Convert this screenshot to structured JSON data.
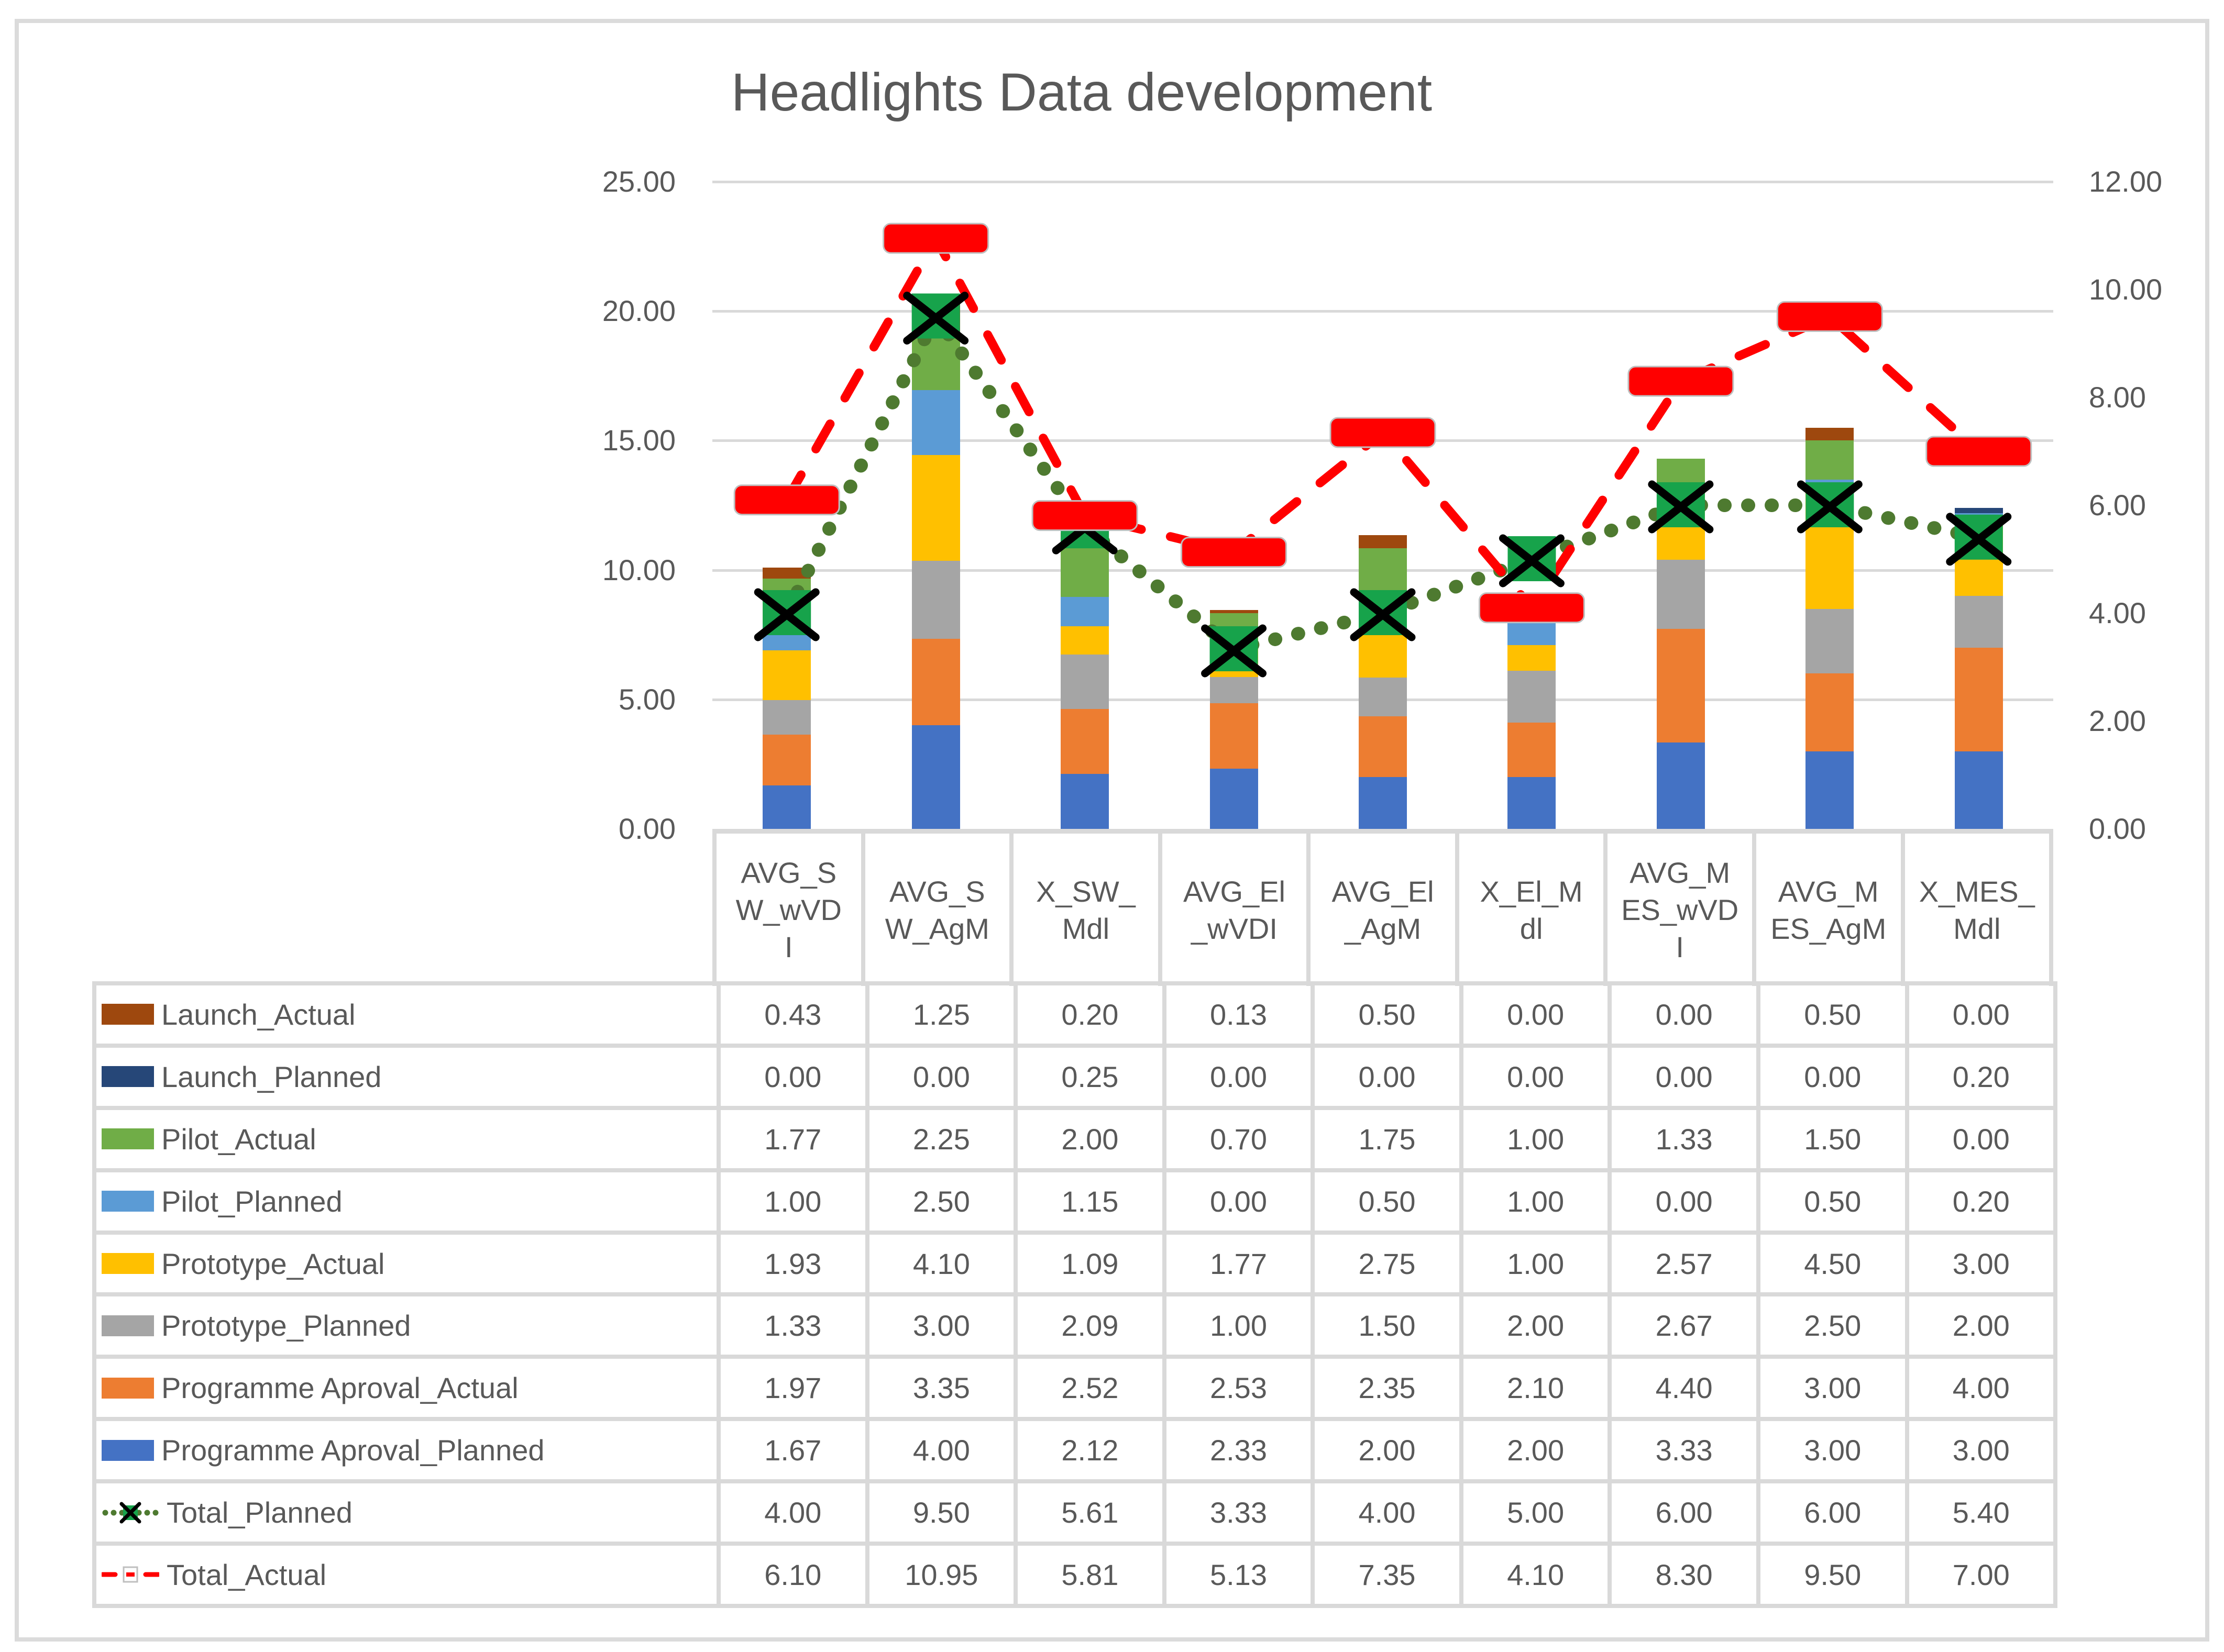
{
  "colors": {
    "text": "#595959",
    "grid_line": "#D9D9D9",
    "table_line": "#D9D9D9",
    "figure_border": "#DBDBDB",
    "marker_border": "#BFBFBF",
    "background": "#FFFFFF"
  },
  "chart_data": {
    "type": "combo: stacked bar (left axis) + 2 line series with markers (right axis)",
    "title": "Headlights Data development",
    "legend_position": "table-left",
    "grid": "horizontal major gridlines, left axis",
    "categories": [
      {
        "label": "AVG_SW_wVDI",
        "display_lines": [
          "AVG_S",
          "W_wVD",
          "I"
        ]
      },
      {
        "label": "AVG_SW_AgM",
        "display_lines": [
          "AVG_S",
          "W_AgM"
        ]
      },
      {
        "label": "X_SW_Mdl",
        "display_lines": [
          "X_SW_",
          "Mdl"
        ]
      },
      {
        "label": "AVG_El_wVDI",
        "display_lines": [
          "AVG_El",
          "_wVDI"
        ]
      },
      {
        "label": "AVG_El_AgM",
        "display_lines": [
          "AVG_El",
          "_AgM"
        ]
      },
      {
        "label": "X_El_Mdl",
        "display_lines": [
          "X_El_M",
          "dl"
        ]
      },
      {
        "label": "AVG_MES_wVDI",
        "display_lines": [
          "AVG_M",
          "ES_wVD",
          "I"
        ]
      },
      {
        "label": "AVG_MES_AgM",
        "display_lines": [
          "AVG_M",
          "ES_AgM"
        ]
      },
      {
        "label": "X_MES_Mdl",
        "display_lines": [
          "X_MES_",
          "Mdl"
        ]
      }
    ],
    "left_axis": {
      "min": 0,
      "max": 25,
      "step": 5,
      "ticks": [
        "25.00",
        "20.00",
        "15.00",
        "10.00",
        "5.00",
        "0.00"
      ]
    },
    "right_axis": {
      "min": 0,
      "max": 12,
      "step": 2,
      "ticks": [
        "12.00",
        "10.00",
        "8.00",
        "6.00",
        "4.00",
        "2.00",
        "0.00"
      ]
    },
    "series": {
      "launch_actual": {
        "label": "Launch_Actual",
        "key_type": "rect",
        "color": "#9E480E",
        "values": [
          0.43,
          1.25,
          0.2,
          0.13,
          0.5,
          0.0,
          0.0,
          0.5,
          0.0
        ]
      },
      "launch_planned": {
        "label": "Launch_Planned",
        "key_type": "rect",
        "color": "#264778",
        "values": [
          0.0,
          0.0,
          0.25,
          0.0,
          0.0,
          0.0,
          0.0,
          0.0,
          0.2
        ]
      },
      "pilot_actual": {
        "label": "Pilot_Actual",
        "key_type": "rect",
        "color": "#70AD47",
        "values": [
          1.77,
          2.25,
          2.0,
          0.7,
          1.75,
          1.0,
          1.33,
          1.5,
          0.0
        ]
      },
      "pilot_planned": {
        "label": "Pilot_Planned",
        "key_type": "rect",
        "color": "#5B9BD5",
        "values": [
          1.0,
          2.5,
          1.15,
          0.0,
          0.5,
          1.0,
          0.0,
          0.5,
          0.2
        ]
      },
      "prototype_actual": {
        "label": "Prototype_Actual",
        "key_type": "rect",
        "color": "#FFC000",
        "values": [
          1.93,
          4.1,
          1.09,
          1.77,
          2.75,
          1.0,
          2.57,
          4.5,
          3.0
        ]
      },
      "prototype_planned": {
        "label": "Prototype_Planned",
        "key_type": "rect",
        "color": "#A5A5A5",
        "values": [
          1.33,
          3.0,
          2.09,
          1.0,
          1.5,
          2.0,
          2.67,
          2.5,
          2.0
        ]
      },
      "programme_aproval_actual": {
        "label": "Programme Aproval_Actual",
        "key_type": "rect",
        "color": "#ED7D31",
        "values": [
          1.97,
          3.35,
          2.52,
          2.53,
          2.35,
          2.1,
          4.4,
          3.0,
          4.0
        ]
      },
      "programme_aproval_planned": {
        "label": "Programme Aproval_Planned",
        "key_type": "rect",
        "color": "#4472C4",
        "values": [
          1.67,
          4.0,
          2.12,
          2.33,
          2.0,
          2.0,
          3.33,
          3.0,
          3.0
        ]
      },
      "total_planned": {
        "label": "Total_Planned",
        "key_type": "dotted",
        "axis": "right",
        "line_style": "dotted",
        "line_color": "#4E7A30",
        "marker": "black X on green square",
        "marker_fill": "#17A34B",
        "marker_line": "#000000",
        "values": [
          4.0,
          9.5,
          5.61,
          3.33,
          4.0,
          5.0,
          6.0,
          6.0,
          5.4
        ]
      },
      "total_actual": {
        "label": "Total_Actual",
        "key_type": "dashed",
        "axis": "right",
        "line_style": "dashed",
        "line_color": "#FF0000",
        "marker": "red rounded dash with gray outline",
        "marker_fill": "#FF0000",
        "values": [
          6.1,
          10.95,
          5.81,
          5.13,
          7.35,
          4.1,
          8.3,
          9.5,
          7.0
        ]
      }
    },
    "stack_order": [
      "programme_aproval_planned",
      "programme_aproval_actual",
      "prototype_planned",
      "prototype_actual",
      "pilot_planned",
      "pilot_actual",
      "launch_planned",
      "launch_actual"
    ],
    "line_series_order": [
      "total_planned",
      "total_actual"
    ],
    "table_row_order": [
      "launch_actual",
      "launch_planned",
      "pilot_actual",
      "pilot_planned",
      "prototype_actual",
      "prototype_planned",
      "programme_aproval_actual",
      "programme_aproval_planned",
      "total_planned",
      "total_actual"
    ],
    "value_format": "0.00"
  }
}
